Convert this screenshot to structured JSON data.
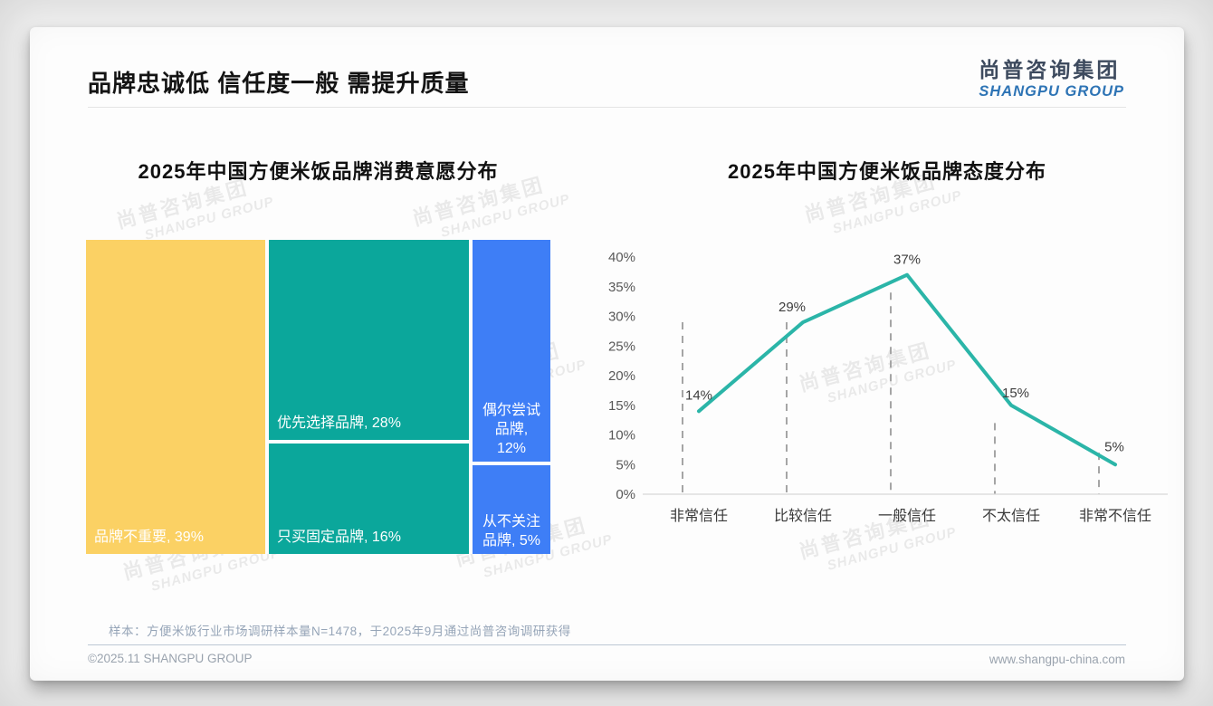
{
  "page": {
    "title": "品牌忠诚低 信任度一般 需提升质量",
    "logo": {
      "zh": "尚普咨询集团",
      "en": "SHANGPU GROUP"
    },
    "watermark": {
      "zh": "尚普咨询集团",
      "en": "SHANGPU GROUP"
    },
    "footer": {
      "note": "样本：方便米饭行业市场调研样本量N=1478，于2025年9月通过尚普咨询调研获得",
      "copyright": "©2025.11 SHANGPU GROUP",
      "website": "www.shangpu-china.com"
    }
  },
  "chart_data": [
    {
      "type": "treemap",
      "title": "2025年中国方便米饭品牌消费意愿分布",
      "unit": "%",
      "segments": [
        {
          "label": "品牌不重要",
          "value": 39,
          "text": "品牌不重要, 39%",
          "color": "#fbd164"
        },
        {
          "label": "优先选择品牌",
          "value": 28,
          "text": "优先选择品牌, 28%",
          "color": "#0ba79b"
        },
        {
          "label": "只买固定品牌",
          "value": 16,
          "text": "只买固定品牌, 16%",
          "color": "#0ba79b"
        },
        {
          "label": "偶尔尝试品牌",
          "value": 12,
          "text": "偶尔尝试\n品牌,\n12%",
          "color": "#3e7ef6"
        },
        {
          "label": "从不关注品牌",
          "value": 5,
          "text": "从不关注\n品牌, 5%",
          "color": "#3e7ef6"
        }
      ]
    },
    {
      "type": "line",
      "title": "2025年中国方便米饭品牌态度分布",
      "categories": [
        "非常信任",
        "比较信任",
        "一般信任",
        "不太信任",
        "非常不信任"
      ],
      "values": [
        14,
        29,
        37,
        15,
        5
      ],
      "point_labels": [
        "14%",
        "29%",
        "37%",
        "15%",
        "5%"
      ],
      "yticks": [
        "0%",
        "5%",
        "10%",
        "15%",
        "20%",
        "25%",
        "30%",
        "35%",
        "40%"
      ],
      "ylim": [
        0,
        40
      ],
      "line_color": "#2bb5a8",
      "dropline_color": "#a5a5a5",
      "axis_color": "#d9d9d9",
      "dropline_top_values": [
        29,
        29,
        34,
        12,
        7
      ],
      "legend": "none",
      "grid": "dashed vertical droplines per category"
    }
  ]
}
